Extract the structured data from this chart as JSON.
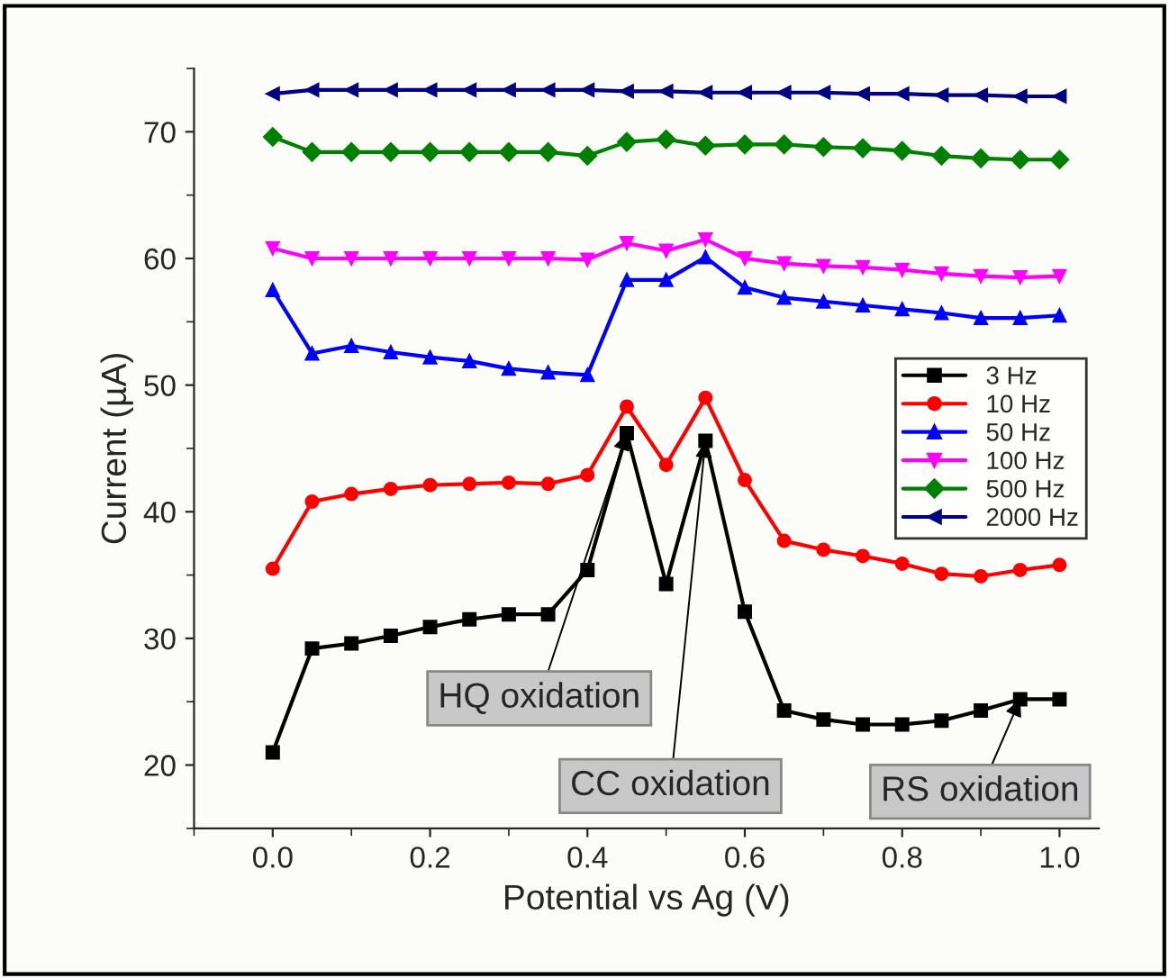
{
  "chart_data": {
    "type": "line",
    "xlabel": "Potential vs Ag (V)",
    "ylabel": "Current (µA)",
    "x": [
      0,
      0.05,
      0.1,
      0.15,
      0.2,
      0.25,
      0.3,
      0.35,
      0.4,
      0.45,
      0.5,
      0.55,
      0.6,
      0.65,
      0.7,
      0.75,
      0.8,
      0.85,
      0.9,
      0.95,
      1.0
    ],
    "series": [
      {
        "name": "3 Hz",
        "color": "#000000",
        "marker": "square",
        "values": [
          21.0,
          29.2,
          29.6,
          30.2,
          30.9,
          31.5,
          31.9,
          31.9,
          35.4,
          46.2,
          34.3,
          45.6,
          32.1,
          24.3,
          23.6,
          23.2,
          23.2,
          23.5,
          24.3,
          25.2,
          25.2
        ]
      },
      {
        "name": "10 Hz",
        "color": "#ff0000",
        "marker": "circle",
        "values": [
          35.5,
          40.8,
          41.4,
          41.8,
          42.1,
          42.2,
          42.3,
          42.2,
          42.9,
          48.3,
          43.7,
          49.0,
          42.5,
          37.7,
          37.0,
          36.5,
          35.9,
          35.1,
          34.9,
          35.4,
          35.8
        ]
      },
      {
        "name": "50 Hz",
        "color": "#0000ff",
        "marker": "triangle",
        "values": [
          57.5,
          52.5,
          53.1,
          52.6,
          52.2,
          51.9,
          51.3,
          51.0,
          50.8,
          58.3,
          58.3,
          60.1,
          57.7,
          56.9,
          56.6,
          56.3,
          56.0,
          55.7,
          55.3,
          55.3,
          55.5
        ]
      },
      {
        "name": "100 Hz",
        "color": "#ff00ff",
        "marker": "triangle_down",
        "values": [
          60.8,
          60.0,
          60.0,
          60.0,
          60.0,
          60.0,
          60.0,
          60.0,
          59.9,
          61.2,
          60.6,
          61.5,
          60.0,
          59.6,
          59.4,
          59.3,
          59.1,
          58.8,
          58.6,
          58.5,
          58.6
        ]
      },
      {
        "name": "500 Hz",
        "color": "#008000",
        "marker": "diamond",
        "values": [
          69.6,
          68.4,
          68.4,
          68.4,
          68.4,
          68.4,
          68.4,
          68.4,
          68.1,
          69.2,
          69.4,
          68.9,
          69.0,
          69.0,
          68.8,
          68.7,
          68.5,
          68.1,
          67.9,
          67.8,
          67.8
        ]
      },
      {
        "name": "2000 Hz",
        "color": "#000080",
        "marker": "triangle_left",
        "values": [
          73.0,
          73.3,
          73.3,
          73.3,
          73.3,
          73.3,
          73.3,
          73.3,
          73.3,
          73.2,
          73.2,
          73.1,
          73.1,
          73.1,
          73.1,
          73.0,
          73.0,
          72.9,
          72.9,
          72.8,
          72.8
        ]
      }
    ],
    "annotations": [
      {
        "text": "HQ oxidation",
        "x": 0.45,
        "y": 46.2
      },
      {
        "text": "CC oxidation",
        "x": 0.55,
        "y": 45.6
      },
      {
        "text": "RS oxidation",
        "x": 0.95,
        "y": 25.2
      }
    ],
    "xlim": [
      -0.1,
      1.05
    ],
    "ylim": [
      15,
      75
    ],
    "xticks": [
      {
        "value": 0,
        "label": "0.0"
      },
      0.2,
      0.4,
      0.6,
      0.8,
      {
        "value": 1,
        "label": "1.0"
      }
    ],
    "yticks": [
      20,
      30,
      40,
      50,
      60,
      70
    ],
    "legend": "center right",
    "grid": false
  }
}
